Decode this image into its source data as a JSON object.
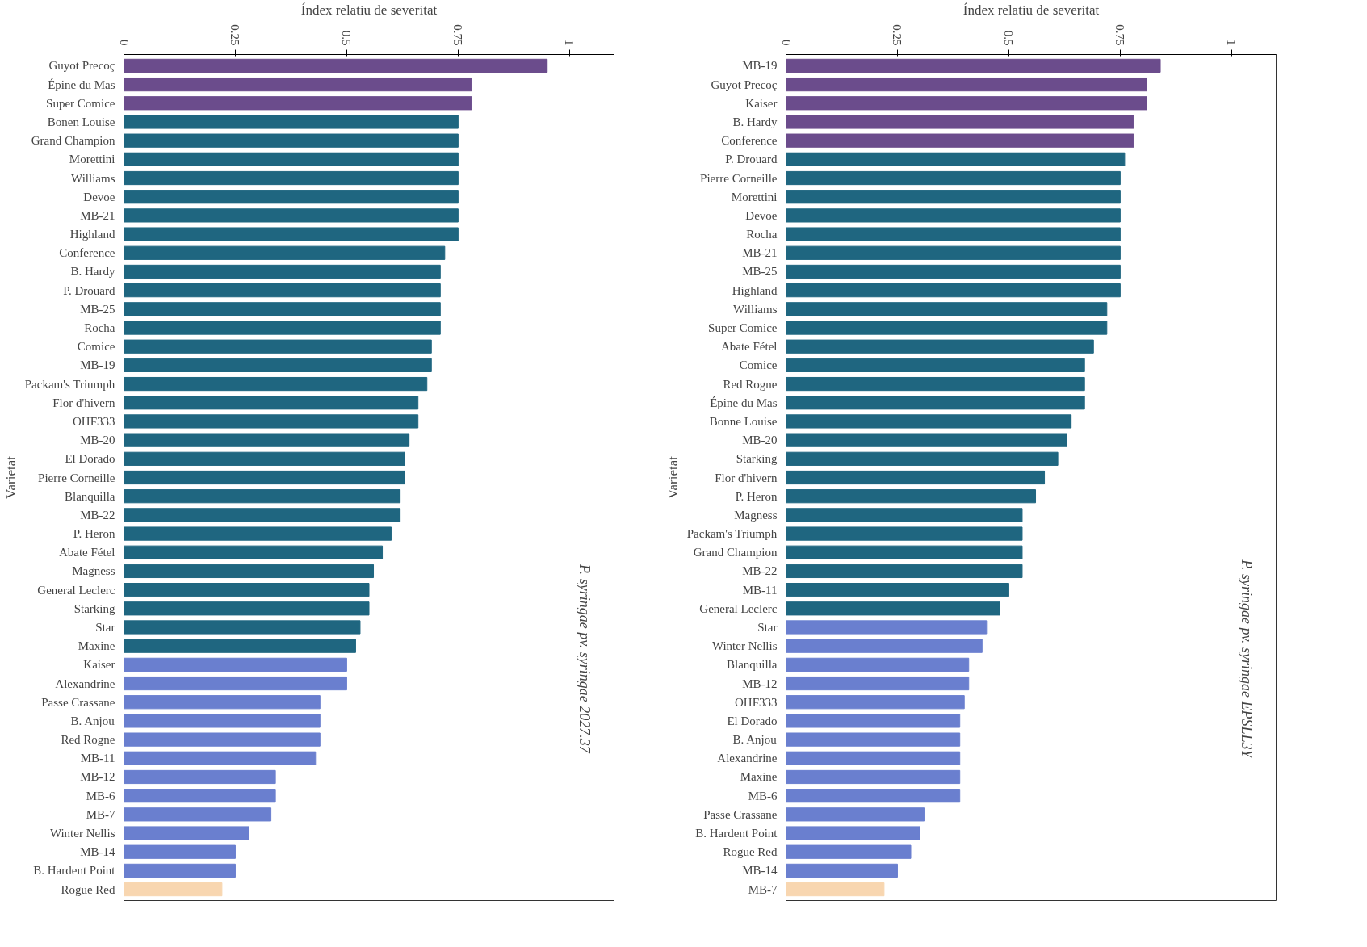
{
  "chart_data": [
    {
      "type": "bar",
      "orientation": "horizontal",
      "xlabel": "Índex relatiu de severitat",
      "ylabel": "Varietat",
      "xlim": [
        0,
        1.1
      ],
      "xticks": [
        0,
        0.25,
        0.5,
        0.75,
        1
      ],
      "grid": false,
      "annotations": [
        "P. syringae pv. syringae 2027.37"
      ],
      "categories": [
        "Guyot Precoç",
        "Épine du Mas",
        "Super Comice",
        "Bonen Louise",
        "Grand Champion",
        "Morettini",
        "Williams",
        "Devoe",
        "MB-21",
        "Highland",
        "Conference",
        "B. Hardy",
        "P. Drouard",
        "MB-25",
        "Rocha",
        "Comice",
        "MB-19",
        "Packam's Triumph",
        "Flor d'hivern",
        "OHF333",
        "MB-20",
        "El Dorado",
        "Pierre Corneille",
        "Blanquilla",
        "MB-22",
        "P. Heron",
        "Abate Fétel",
        "Magness",
        "General Leclerc",
        "Starking",
        "Star",
        "Maxine",
        "Kaiser",
        "Alexandrine",
        "Passe Crassane",
        "B. Anjou",
        "Red Rogne",
        "MB-11",
        "MB-12",
        "MB-6",
        "MB-7",
        "Winter Nellis",
        "MB-14",
        "B. Hardent Point",
        "Rogue Red"
      ],
      "values": [
        0.95,
        0.78,
        0.78,
        0.75,
        0.75,
        0.75,
        0.75,
        0.75,
        0.75,
        0.75,
        0.72,
        0.71,
        0.71,
        0.71,
        0.71,
        0.69,
        0.69,
        0.68,
        0.66,
        0.66,
        0.64,
        0.63,
        0.63,
        0.62,
        0.62,
        0.6,
        0.58,
        0.56,
        0.55,
        0.55,
        0.53,
        0.52,
        0.5,
        0.5,
        0.44,
        0.44,
        0.44,
        0.43,
        0.34,
        0.34,
        0.33,
        0.28,
        0.25,
        0.25,
        0.22
      ],
      "colors": [
        "#6b4c8c",
        "#6b4c8c",
        "#6b4c8c",
        "#1f6680",
        "#1f6680",
        "#1f6680",
        "#1f6680",
        "#1f6680",
        "#1f6680",
        "#1f6680",
        "#1f6680",
        "#1f6680",
        "#1f6680",
        "#1f6680",
        "#1f6680",
        "#1f6680",
        "#1f6680",
        "#1f6680",
        "#1f6680",
        "#1f6680",
        "#1f6680",
        "#1f6680",
        "#1f6680",
        "#1f6680",
        "#1f6680",
        "#1f6680",
        "#1f6680",
        "#1f6680",
        "#1f6680",
        "#1f6680",
        "#1f6680",
        "#1f6680",
        "#6a7fcf",
        "#6a7fcf",
        "#6a7fcf",
        "#6a7fcf",
        "#6a7fcf",
        "#6a7fcf",
        "#6a7fcf",
        "#6a7fcf",
        "#6a7fcf",
        "#6a7fcf",
        "#6a7fcf",
        "#6a7fcf",
        "#f8d6b0"
      ]
    },
    {
      "type": "bar",
      "orientation": "horizontal",
      "xlabel": "Índex relatiu de severitat",
      "ylabel": "Varietat",
      "xlim": [
        0,
        1.1
      ],
      "xticks": [
        0,
        0.25,
        0.5,
        0.75,
        1
      ],
      "grid": false,
      "annotations": [
        "P. syringae pv. syringae EPSLL3Y"
      ],
      "categories": [
        "MB-19",
        "Guyot Precoç",
        "Kaiser",
        "B. Hardy",
        "Conference",
        "P. Drouard",
        "Pierre Corneille",
        "Morettini",
        "Devoe",
        "Rocha",
        "MB-21",
        "MB-25",
        "Highland",
        "Williams",
        "Super Comice",
        "Abate Fétel",
        "Comice",
        "Red Rogne",
        "Épine du Mas",
        "Bonne Louise",
        "MB-20",
        "Starking",
        "Flor d'hivern",
        "P. Heron",
        "Magness",
        "Packam's Triumph",
        "Grand Champion",
        "MB-22",
        "MB-11",
        "General Leclerc",
        "Star",
        "Winter Nellis",
        "Blanquilla",
        "MB-12",
        "OHF333",
        "El Dorado",
        "B. Anjou",
        "Alexandrine",
        "Maxine",
        "MB-6",
        "Passe Crassane",
        "B. Hardent Point",
        "Rogue Red",
        "MB-14",
        "MB-7"
      ],
      "values": [
        0.84,
        0.81,
        0.81,
        0.78,
        0.78,
        0.76,
        0.75,
        0.75,
        0.75,
        0.75,
        0.75,
        0.75,
        0.75,
        0.72,
        0.72,
        0.69,
        0.67,
        0.67,
        0.67,
        0.64,
        0.63,
        0.61,
        0.58,
        0.56,
        0.53,
        0.53,
        0.53,
        0.53,
        0.5,
        0.48,
        0.45,
        0.44,
        0.41,
        0.41,
        0.4,
        0.39,
        0.39,
        0.39,
        0.39,
        0.39,
        0.31,
        0.3,
        0.28,
        0.25,
        0.22
      ],
      "colors": [
        "#6b4c8c",
        "#6b4c8c",
        "#6b4c8c",
        "#6b4c8c",
        "#6b4c8c",
        "#1f6680",
        "#1f6680",
        "#1f6680",
        "#1f6680",
        "#1f6680",
        "#1f6680",
        "#1f6680",
        "#1f6680",
        "#1f6680",
        "#1f6680",
        "#1f6680",
        "#1f6680",
        "#1f6680",
        "#1f6680",
        "#1f6680",
        "#1f6680",
        "#1f6680",
        "#1f6680",
        "#1f6680",
        "#1f6680",
        "#1f6680",
        "#1f6680",
        "#1f6680",
        "#1f6680",
        "#1f6680",
        "#6a7fcf",
        "#6a7fcf",
        "#6a7fcf",
        "#6a7fcf",
        "#6a7fcf",
        "#6a7fcf",
        "#6a7fcf",
        "#6a7fcf",
        "#6a7fcf",
        "#6a7fcf",
        "#6a7fcf",
        "#6a7fcf",
        "#6a7fcf",
        "#6a7fcf",
        "#f8d6b0"
      ]
    }
  ]
}
